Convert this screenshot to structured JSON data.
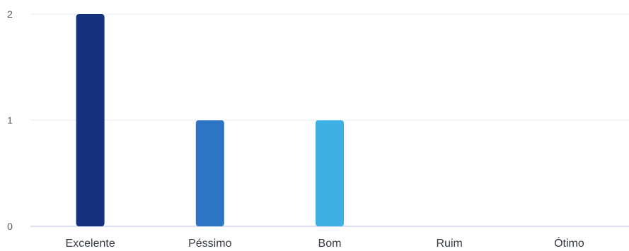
{
  "chart_data": {
    "type": "bar",
    "categories": [
      "Excelente",
      "Péssimo",
      "Bom",
      "Ruim",
      "Ótimo"
    ],
    "values": [
      2,
      1,
      1,
      0,
      0
    ],
    "colors": [
      "#15317e",
      "#2e74c5",
      "#3fb0e5",
      "#8fd0f0",
      "#bfe6f7"
    ],
    "ylim": [
      0,
      2
    ],
    "yticks": [
      0,
      1,
      2
    ],
    "grid": true,
    "title": "",
    "xlabel": "",
    "ylabel": ""
  }
}
